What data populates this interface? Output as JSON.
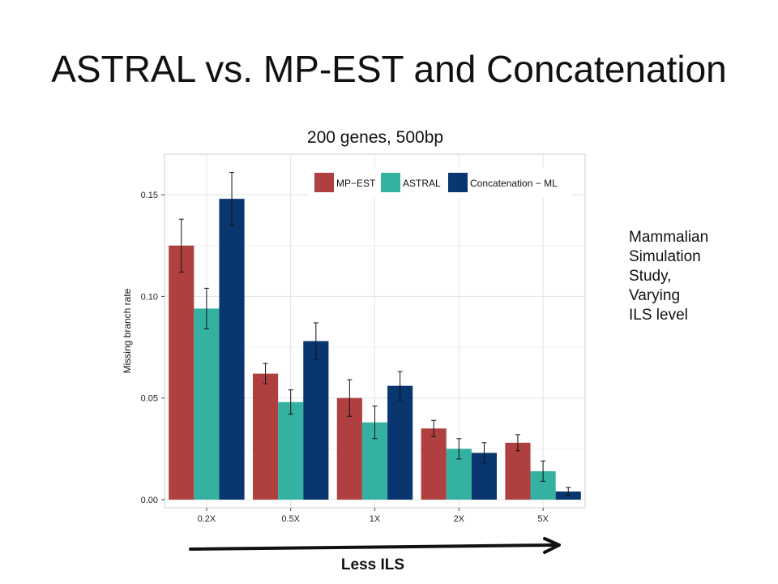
{
  "slide": {
    "title": "ASTRAL vs. MP-EST and Concatenation",
    "side_note": [
      "Mammalian",
      "Simulation",
      "Study,",
      "Varying",
      "ILS level"
    ],
    "arrow_label": "Less ILS"
  },
  "chart_data": {
    "type": "bar",
    "title": "200 genes, 500bp",
    "xlabel": "",
    "ylabel": "Missing branch rate",
    "ylim": [
      -0.004,
      0.17
    ],
    "yticks": [
      0.0,
      0.05,
      0.1,
      0.15
    ],
    "ytick_labels": [
      "0.00",
      "0.05",
      "0.10",
      "0.15"
    ],
    "categories": [
      "0.2X",
      "0.5X",
      "1X",
      "2X",
      "5X"
    ],
    "grid": true,
    "legend_position": "top-right",
    "series": [
      {
        "name": "MP−EST",
        "color": "#b0403f",
        "values": [
          0.125,
          0.062,
          0.05,
          0.035,
          0.028
        ],
        "errors": [
          0.013,
          0.005,
          0.009,
          0.004,
          0.004
        ]
      },
      {
        "name": "ASTRAL",
        "color": "#34b1a1",
        "values": [
          0.094,
          0.048,
          0.038,
          0.025,
          0.014
        ],
        "errors": [
          0.01,
          0.006,
          0.008,
          0.005,
          0.005
        ]
      },
      {
        "name": "Concatenation − ML",
        "color": "#0a3670",
        "values": [
          0.148,
          0.078,
          0.056,
          0.023,
          0.004
        ],
        "errors": [
          0.013,
          0.009,
          0.007,
          0.005,
          0.002
        ]
      }
    ]
  }
}
